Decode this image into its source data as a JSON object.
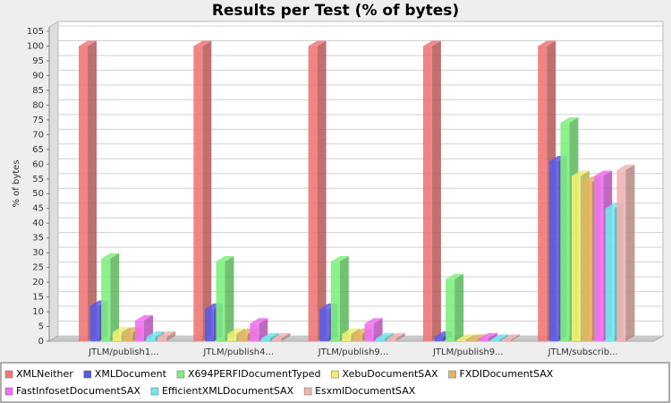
{
  "chart_data": {
    "type": "bar3d",
    "title": "Results per Test (% of bytes)",
    "y_label": "% of bytes",
    "categories": [
      "JTLM/publish1...",
      "JTLM/publish4...",
      "JTLM/publish9...",
      "JTLM/publish9...",
      "JTLM/subscrib..."
    ],
    "series": [
      {
        "name": "XMLNeither",
        "color": "#f07878",
        "values": [
          100,
          100,
          100,
          100,
          100
        ]
      },
      {
        "name": "XMLDocument",
        "color": "#5a5ae6",
        "values": [
          12,
          11,
          11,
          1.5,
          61
        ]
      },
      {
        "name": "X694PERFIDocumentTyped",
        "color": "#7ef07e",
        "values": [
          28,
          27,
          27,
          21,
          74
        ]
      },
      {
        "name": "XebuDocumentSAX",
        "color": "#f0f070",
        "values": [
          3,
          2.5,
          2.5,
          0.5,
          56
        ]
      },
      {
        "name": "FXDIDocumentSAX",
        "color": "#e6b464",
        "values": [
          3,
          2.5,
          2.5,
          0.5,
          54
        ]
      },
      {
        "name": "FastInfosetDocumentSAX",
        "color": "#f070f0",
        "values": [
          7,
          6,
          6,
          1,
          56
        ]
      },
      {
        "name": "EfficientXMLDocumentSAX",
        "color": "#70e8f0",
        "values": [
          1.5,
          1,
          1,
          0.5,
          45
        ]
      },
      {
        "name": "EsxmlDocumentSAX",
        "color": "#f0b4b4",
        "values": [
          1.5,
          1,
          1,
          0.5,
          58
        ]
      }
    ],
    "ylim": [
      0,
      105
    ],
    "yticks": [
      0,
      5,
      10,
      15,
      20,
      25,
      30,
      35,
      40,
      45,
      50,
      55,
      60,
      65,
      70,
      75,
      80,
      85,
      90,
      95,
      100,
      105
    ],
    "grid": true
  }
}
